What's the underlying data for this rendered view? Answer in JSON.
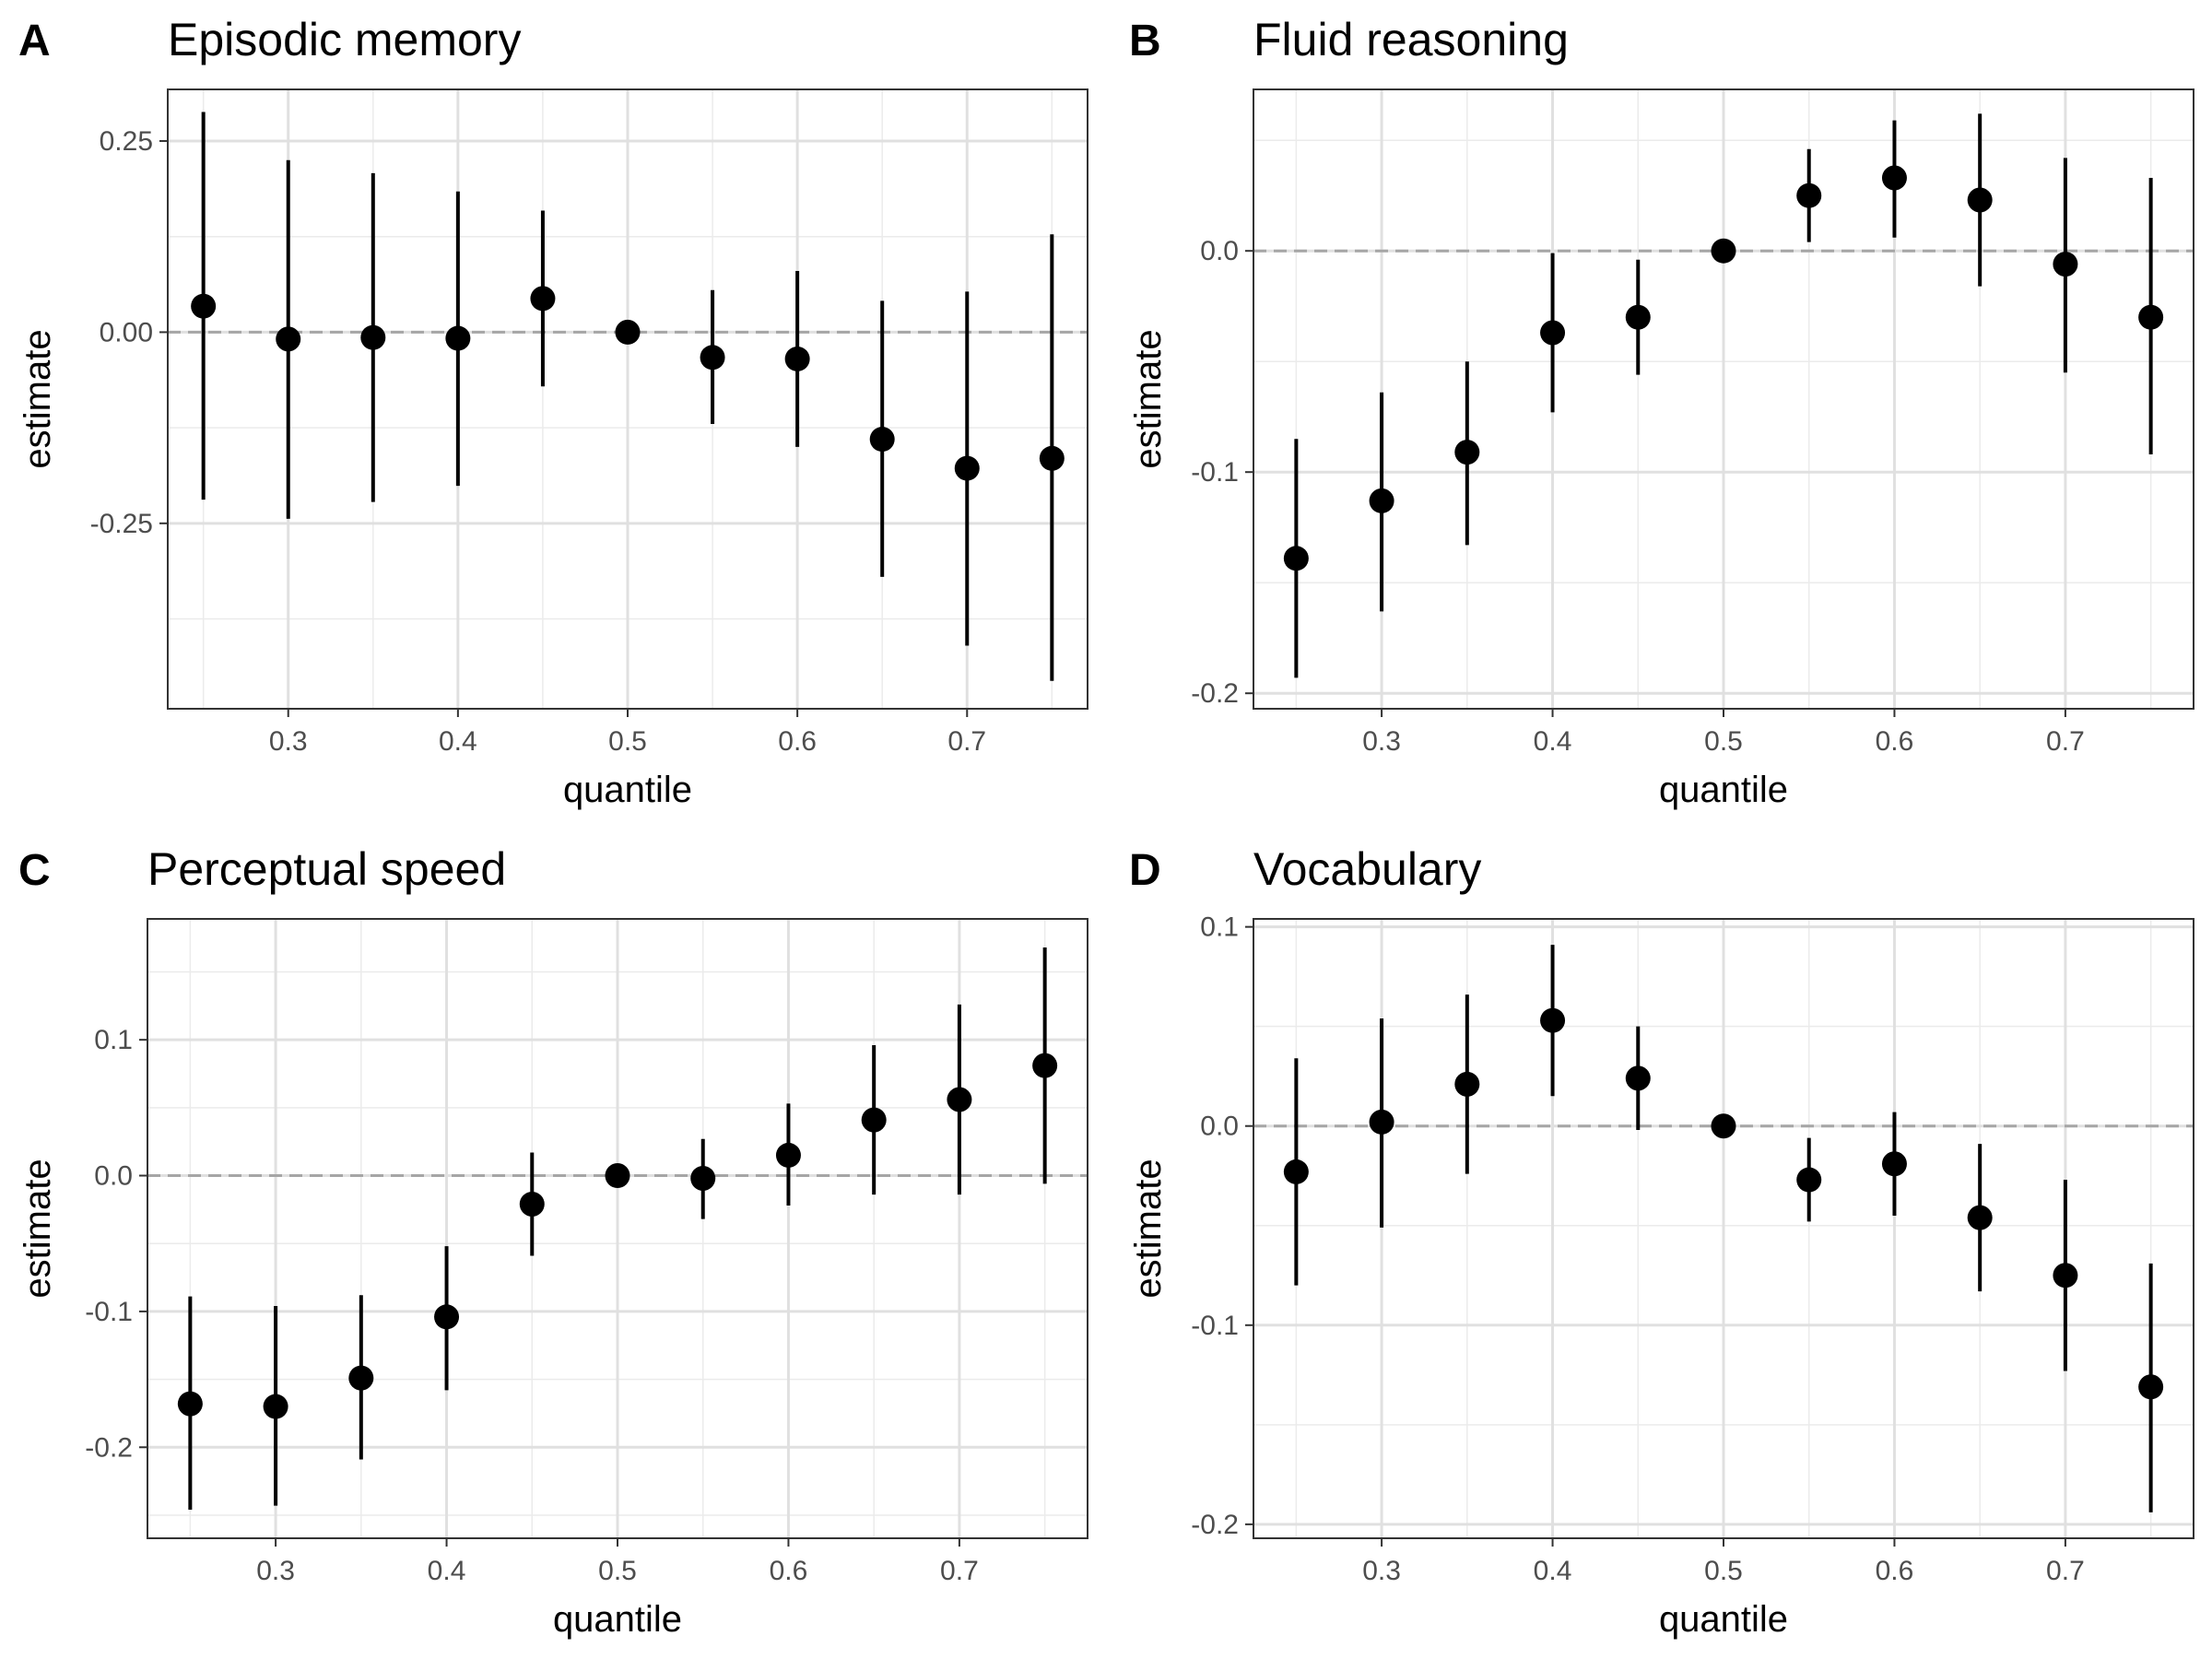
{
  "chart_data": [
    {
      "type": "scatter",
      "panel_label": "A",
      "title": "Episodic memory",
      "xlabel": "quantile",
      "ylabel": "estimate",
      "xlim": [
        0.229,
        0.771
      ],
      "ylim": [
        -0.4925,
        0.3175
      ],
      "xticks": [
        0.3,
        0.4,
        0.5,
        0.6,
        0.7
      ],
      "xtick_labels": [
        "0.3",
        "0.4",
        "0.5",
        "0.6",
        "0.7"
      ],
      "yticks": [
        0.25,
        0.0,
        -0.25
      ],
      "ytick_labels": [
        "0.25",
        "0.00",
        "-0.25"
      ],
      "ref_line": 0,
      "grid": true,
      "points": [
        {
          "x": 0.25,
          "y": 0.034,
          "lo": -0.219,
          "hi": 0.288
        },
        {
          "x": 0.3,
          "y": -0.009,
          "lo": -0.244,
          "hi": 0.225
        },
        {
          "x": 0.35,
          "y": -0.007,
          "lo": -0.222,
          "hi": 0.208
        },
        {
          "x": 0.4,
          "y": -0.008,
          "lo": -0.201,
          "hi": 0.184
        },
        {
          "x": 0.45,
          "y": 0.044,
          "lo": -0.071,
          "hi": 0.159
        },
        {
          "x": 0.5,
          "y": 0.0,
          "lo": 0.0,
          "hi": 0.0
        },
        {
          "x": 0.55,
          "y": -0.033,
          "lo": -0.12,
          "hi": 0.055
        },
        {
          "x": 0.6,
          "y": -0.035,
          "lo": -0.15,
          "hi": 0.08
        },
        {
          "x": 0.65,
          "y": -0.14,
          "lo": -0.32,
          "hi": 0.041
        },
        {
          "x": 0.7,
          "y": -0.178,
          "lo": -0.41,
          "hi": 0.053
        },
        {
          "x": 0.75,
          "y": -0.165,
          "lo": -0.456,
          "hi": 0.128
        }
      ]
    },
    {
      "type": "scatter",
      "panel_label": "B",
      "title": "Fluid reasoning",
      "xlabel": "quantile",
      "ylabel": "estimate",
      "xlim": [
        0.225,
        0.775
      ],
      "ylim": [
        -0.207,
        0.073
      ],
      "xticks": [
        0.3,
        0.4,
        0.5,
        0.6,
        0.7
      ],
      "xtick_labels": [
        "0.3",
        "0.4",
        "0.5",
        "0.6",
        "0.7"
      ],
      "yticks": [
        0.0,
        -0.1,
        -0.2
      ],
      "ytick_labels": [
        "0.0",
        "-0.1",
        "-0.2"
      ],
      "ref_line": 0,
      "grid": true,
      "points": [
        {
          "x": 0.25,
          "y": -0.139,
          "lo": -0.193,
          "hi": -0.085
        },
        {
          "x": 0.3,
          "y": -0.113,
          "lo": -0.163,
          "hi": -0.064
        },
        {
          "x": 0.35,
          "y": -0.091,
          "lo": -0.133,
          "hi": -0.05
        },
        {
          "x": 0.4,
          "y": -0.037,
          "lo": -0.073,
          "hi": -0.001
        },
        {
          "x": 0.45,
          "y": -0.03,
          "lo": -0.056,
          "hi": -0.004
        },
        {
          "x": 0.5,
          "y": 0.0,
          "lo": 0.0,
          "hi": 0.0
        },
        {
          "x": 0.55,
          "y": 0.025,
          "lo": 0.004,
          "hi": 0.046
        },
        {
          "x": 0.6,
          "y": 0.033,
          "lo": 0.006,
          "hi": 0.059
        },
        {
          "x": 0.65,
          "y": 0.023,
          "lo": -0.016,
          "hi": 0.062
        },
        {
          "x": 0.7,
          "y": -0.006,
          "lo": -0.055,
          "hi": 0.042
        },
        {
          "x": 0.75,
          "y": -0.03,
          "lo": -0.092,
          "hi": 0.033
        }
      ]
    },
    {
      "type": "scatter",
      "panel_label": "C",
      "title": "Perceptual speed",
      "xlabel": "quantile",
      "ylabel": "estimate",
      "xlim": [
        0.225,
        0.775
      ],
      "ylim": [
        -0.267,
        0.189
      ],
      "xticks": [
        0.3,
        0.4,
        0.5,
        0.6,
        0.7
      ],
      "xtick_labels": [
        "0.3",
        "0.4",
        "0.5",
        "0.6",
        "0.7"
      ],
      "yticks": [
        0.1,
        0.0,
        -0.1,
        -0.2
      ],
      "ytick_labels": [
        "0.1",
        "0.0",
        "-0.1",
        "-0.2"
      ],
      "ref_line": 0,
      "grid": true,
      "points": [
        {
          "x": 0.25,
          "y": -0.168,
          "lo": -0.246,
          "hi": -0.089
        },
        {
          "x": 0.3,
          "y": -0.17,
          "lo": -0.243,
          "hi": -0.096
        },
        {
          "x": 0.35,
          "y": -0.149,
          "lo": -0.209,
          "hi": -0.088
        },
        {
          "x": 0.4,
          "y": -0.104,
          "lo": -0.158,
          "hi": -0.052
        },
        {
          "x": 0.45,
          "y": -0.021,
          "lo": -0.059,
          "hi": 0.017
        },
        {
          "x": 0.5,
          "y": 0.0,
          "lo": 0.0,
          "hi": 0.0
        },
        {
          "x": 0.55,
          "y": -0.002,
          "lo": -0.032,
          "hi": 0.027
        },
        {
          "x": 0.6,
          "y": 0.015,
          "lo": -0.022,
          "hi": 0.053
        },
        {
          "x": 0.65,
          "y": 0.041,
          "lo": -0.014,
          "hi": 0.096
        },
        {
          "x": 0.7,
          "y": 0.056,
          "lo": -0.014,
          "hi": 0.126
        },
        {
          "x": 0.75,
          "y": 0.081,
          "lo": -0.006,
          "hi": 0.168
        }
      ]
    },
    {
      "type": "scatter",
      "panel_label": "D",
      "title": "Vocabulary",
      "xlabel": "quantile",
      "ylabel": "estimate",
      "xlim": [
        0.225,
        0.775
      ],
      "ylim": [
        -0.207,
        0.104
      ],
      "xticks": [
        0.3,
        0.4,
        0.5,
        0.6,
        0.7
      ],
      "xtick_labels": [
        "0.3",
        "0.4",
        "0.5",
        "0.6",
        "0.7"
      ],
      "yticks": [
        0.1,
        0.0,
        -0.1,
        -0.2
      ],
      "ytick_labels": [
        "0.1",
        "0.0",
        "-0.1",
        "-0.2"
      ],
      "ref_line": 0,
      "grid": true,
      "points": [
        {
          "x": 0.25,
          "y": -0.023,
          "lo": -0.08,
          "hi": 0.034
        },
        {
          "x": 0.3,
          "y": 0.002,
          "lo": -0.051,
          "hi": 0.054
        },
        {
          "x": 0.35,
          "y": 0.021,
          "lo": -0.024,
          "hi": 0.066
        },
        {
          "x": 0.4,
          "y": 0.053,
          "lo": 0.015,
          "hi": 0.091
        },
        {
          "x": 0.45,
          "y": 0.024,
          "lo": -0.002,
          "hi": 0.05
        },
        {
          "x": 0.5,
          "y": 0.0,
          "lo": 0.0,
          "hi": 0.0
        },
        {
          "x": 0.55,
          "y": -0.027,
          "lo": -0.048,
          "hi": -0.006
        },
        {
          "x": 0.6,
          "y": -0.019,
          "lo": -0.045,
          "hi": 0.007
        },
        {
          "x": 0.65,
          "y": -0.046,
          "lo": -0.083,
          "hi": -0.009
        },
        {
          "x": 0.7,
          "y": -0.075,
          "lo": -0.123,
          "hi": -0.027
        },
        {
          "x": 0.75,
          "y": -0.131,
          "lo": -0.194,
          "hi": -0.069
        }
      ]
    }
  ]
}
